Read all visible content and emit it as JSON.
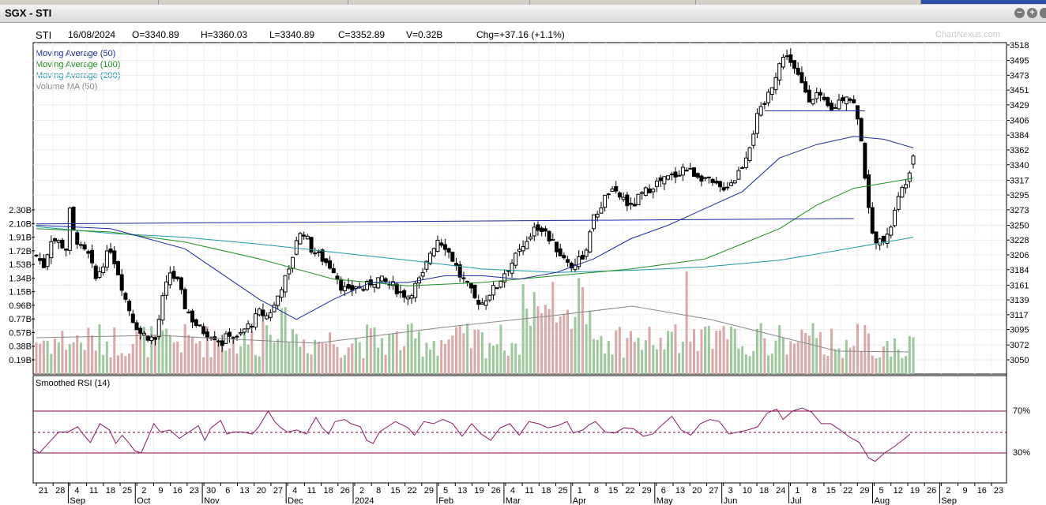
{
  "window": {
    "title": "SGX - STI"
  },
  "quote": {
    "symbol": "STI",
    "date": "16/08/2024",
    "open": "O=3340.89",
    "high": "H=3360.03",
    "low": "L=3340.89",
    "close": "C=3352.89",
    "volume": "V=0.32B",
    "change": "Chg=+37.16 (+1.1%)"
  },
  "watermark": "ChartNexus.com",
  "legend": [
    {
      "label": "Moving Average (50)",
      "color": "#1a2aa0"
    },
    {
      "label": "Moving Average (100)",
      "color": "#1f8f1f"
    },
    {
      "label": "Moving Average (200)",
      "color": "#1a9aa8"
    },
    {
      "label": "Volume MA (50)",
      "color": "#888888"
    }
  ],
  "rsi": {
    "label": "Smoothed RSI (14)",
    "upper_label": "70%",
    "lower_label": "30%",
    "upper": 70,
    "lower": 30
  },
  "chart_data": {
    "type": "candlestick",
    "price_ticks": [
      3518,
      3495,
      3473,
      3451,
      3429,
      3406,
      3384,
      3362,
      3340,
      3317,
      3295,
      3273,
      3250,
      3228,
      3206,
      3184,
      3161,
      3139,
      3117,
      3095,
      3072,
      3050
    ],
    "ylim": [
      3040,
      3528
    ],
    "volume_ticks": [
      "2.30B",
      "2.10B",
      "1.91B",
      "1.72B",
      "1.53B",
      "1.34B",
      "1.15B",
      "0.96B",
      "0.77B",
      "0.57B",
      "0.38B",
      "0.19B"
    ],
    "x_day_ticks": [
      "21",
      "28",
      "4",
      "11",
      "18",
      "25",
      "2",
      "9",
      "16",
      "23",
      "30",
      "6",
      "13",
      "20",
      "27",
      "4",
      "11",
      "18",
      "26",
      "2",
      "8",
      "15",
      "22",
      "29",
      "5",
      "13",
      "19",
      "26",
      "4",
      "11",
      "18",
      "25",
      "1",
      "8",
      "15",
      "22",
      "29",
      "6",
      "13",
      "20",
      "27",
      "3",
      "10",
      "18",
      "24",
      "1",
      "8",
      "15",
      "22",
      "29",
      "5",
      "12",
      "19",
      "26",
      "2",
      "9",
      "16",
      "23"
    ],
    "x_month_labels": [
      {
        "label": "Sep",
        "index": 2
      },
      {
        "label": "Oct",
        "index": 6
      },
      {
        "label": "Nov",
        "index": 10
      },
      {
        "label": "Dec",
        "index": 15
      },
      {
        "label": "2024",
        "index": 19
      },
      {
        "label": "Feb",
        "index": 24
      },
      {
        "label": "Mar",
        "index": 28
      },
      {
        "label": "Apr",
        "index": 32
      },
      {
        "label": "May",
        "index": 37
      },
      {
        "label": "Jun",
        "index": 41
      },
      {
        "label": "Jul",
        "index": 45
      },
      {
        "label": "Aug",
        "index": 50
      },
      {
        "label": "Sep",
        "index": 54
      }
    ],
    "close_path": [
      [
        0,
        3205
      ],
      [
        2,
        3190
      ],
      [
        4,
        3230
      ],
      [
        6,
        3225
      ],
      [
        8,
        3215
      ],
      [
        9,
        3270
      ],
      [
        10,
        3240
      ],
      [
        12,
        3215
      ],
      [
        14,
        3205
      ],
      [
        16,
        3170
      ],
      [
        18,
        3195
      ],
      [
        20,
        3215
      ],
      [
        22,
        3180
      ],
      [
        24,
        3140
      ],
      [
        26,
        3110
      ],
      [
        28,
        3090
      ],
      [
        30,
        3085
      ],
      [
        32,
        3080
      ],
      [
        34,
        3140
      ],
      [
        36,
        3180
      ],
      [
        38,
        3165
      ],
      [
        40,
        3130
      ],
      [
        42,
        3110
      ],
      [
        44,
        3095
      ],
      [
        46,
        3090
      ],
      [
        48,
        3085
      ],
      [
        50,
        3075
      ],
      [
        52,
        3090
      ],
      [
        54,
        3080
      ],
      [
        56,
        3095
      ],
      [
        58,
        3105
      ],
      [
        60,
        3120
      ],
      [
        62,
        3115
      ],
      [
        64,
        3130
      ],
      [
        66,
        3160
      ],
      [
        68,
        3180
      ],
      [
        70,
        3230
      ],
      [
        72,
        3240
      ],
      [
        74,
        3215
      ],
      [
        76,
        3205
      ],
      [
        78,
        3195
      ],
      [
        80,
        3185
      ],
      [
        82,
        3160
      ],
      [
        84,
        3150
      ],
      [
        86,
        3160
      ],
      [
        88,
        3155
      ],
      [
        90,
        3165
      ],
      [
        92,
        3170
      ],
      [
        94,
        3165
      ],
      [
        96,
        3160
      ],
      [
        98,
        3150
      ],
      [
        100,
        3145
      ],
      [
        102,
        3160
      ],
      [
        104,
        3175
      ],
      [
        106,
        3210
      ],
      [
        108,
        3230
      ],
      [
        110,
        3220
      ],
      [
        112,
        3200
      ],
      [
        114,
        3175
      ],
      [
        116,
        3160
      ],
      [
        118,
        3140
      ],
      [
        120,
        3135
      ],
      [
        122,
        3150
      ],
      [
        124,
        3160
      ],
      [
        126,
        3180
      ],
      [
        128,
        3195
      ],
      [
        130,
        3210
      ],
      [
        132,
        3220
      ],
      [
        134,
        3250
      ],
      [
        136,
        3245
      ],
      [
        138,
        3230
      ],
      [
        140,
        3215
      ],
      [
        142,
        3200
      ],
      [
        144,
        3190
      ],
      [
        146,
        3200
      ],
      [
        148,
        3210
      ],
      [
        150,
        3260
      ],
      [
        152,
        3280
      ],
      [
        154,
        3300
      ],
      [
        156,
        3295
      ],
      [
        158,
        3290
      ],
      [
        160,
        3275
      ],
      [
        162,
        3290
      ],
      [
        164,
        3300
      ],
      [
        166,
        3310
      ],
      [
        168,
        3315
      ],
      [
        170,
        3320
      ],
      [
        172,
        3325
      ],
      [
        174,
        3335
      ],
      [
        176,
        3330
      ],
      [
        178,
        3325
      ],
      [
        180,
        3320
      ],
      [
        182,
        3310
      ],
      [
        184,
        3305
      ],
      [
        186,
        3310
      ],
      [
        188,
        3320
      ],
      [
        190,
        3340
      ],
      [
        192,
        3370
      ],
      [
        194,
        3410
      ],
      [
        196,
        3430
      ],
      [
        198,
        3460
      ],
      [
        200,
        3490
      ],
      [
        202,
        3505
      ],
      [
        204,
        3480
      ],
      [
        206,
        3460
      ],
      [
        208,
        3440
      ],
      [
        210,
        3445
      ],
      [
        212,
        3430
      ],
      [
        214,
        3420
      ],
      [
        216,
        3435
      ],
      [
        218,
        3445
      ],
      [
        220,
        3430
      ],
      [
        222,
        3380
      ],
      [
        224,
        3270
      ],
      [
        226,
        3220
      ],
      [
        228,
        3230
      ],
      [
        230,
        3250
      ],
      [
        232,
        3290
      ],
      [
        234,
        3317
      ],
      [
        236,
        3352
      ]
    ],
    "ma50": [
      [
        0,
        3250
      ],
      [
        20,
        3245
      ],
      [
        40,
        3215
      ],
      [
        60,
        3140
      ],
      [
        70,
        3110
      ],
      [
        80,
        3140
      ],
      [
        90,
        3165
      ],
      [
        100,
        3165
      ],
      [
        110,
        3175
      ],
      [
        120,
        3175
      ],
      [
        130,
        3170
      ],
      [
        140,
        3180
      ],
      [
        150,
        3200
      ],
      [
        160,
        3230
      ],
      [
        170,
        3250
      ],
      [
        180,
        3275
      ],
      [
        190,
        3300
      ],
      [
        200,
        3350
      ],
      [
        210,
        3370
      ],
      [
        220,
        3382
      ],
      [
        228,
        3378
      ],
      [
        236,
        3365
      ]
    ],
    "ma100": [
      [
        0,
        3245
      ],
      [
        20,
        3240
      ],
      [
        40,
        3225
      ],
      [
        60,
        3200
      ],
      [
        80,
        3170
      ],
      [
        100,
        3160
      ],
      [
        120,
        3165
      ],
      [
        140,
        3175
      ],
      [
        160,
        3185
      ],
      [
        180,
        3200
      ],
      [
        200,
        3245
      ],
      [
        210,
        3280
      ],
      [
        220,
        3305
      ],
      [
        236,
        3320
      ]
    ],
    "ma200": [
      [
        0,
        3248
      ],
      [
        20,
        3238
      ],
      [
        40,
        3232
      ],
      [
        60,
        3222
      ],
      [
        80,
        3210
      ],
      [
        100,
        3198
      ],
      [
        120,
        3185
      ],
      [
        140,
        3180
      ],
      [
        160,
        3183
      ],
      [
        180,
        3188
      ],
      [
        200,
        3198
      ],
      [
        215,
        3212
      ],
      [
        236,
        3232
      ]
    ],
    "trendlines": [
      {
        "from": [
          0,
          3252
        ],
        "to": [
          220,
          3260
        ]
      },
      {
        "from": [
          196,
          3420
        ],
        "to": [
          223,
          3420
        ]
      }
    ],
    "rsi_path": [
      [
        0,
        34
      ],
      [
        4,
        30
      ],
      [
        10,
        40
      ],
      [
        16,
        50
      ],
      [
        22,
        50
      ],
      [
        28,
        55
      ],
      [
        32,
        47
      ],
      [
        36,
        40
      ],
      [
        42,
        58
      ],
      [
        48,
        52
      ],
      [
        52,
        39
      ],
      [
        56,
        47
      ],
      [
        60,
        40
      ],
      [
        64,
        32
      ],
      [
        68,
        30
      ],
      [
        72,
        44
      ],
      [
        76,
        58
      ],
      [
        80,
        50
      ],
      [
        86,
        52
      ],
      [
        92,
        44
      ],
      [
        98,
        50
      ],
      [
        104,
        56
      ],
      [
        108,
        42
      ],
      [
        112,
        54
      ],
      [
        118,
        61
      ],
      [
        122,
        48
      ],
      [
        126,
        50
      ],
      [
        132,
        50
      ],
      [
        138,
        48
      ],
      [
        142,
        55
      ],
      [
        148,
        70
      ],
      [
        152,
        60
      ],
      [
        156,
        54
      ],
      [
        160,
        50
      ],
      [
        166,
        52
      ],
      [
        172,
        48
      ],
      [
        178,
        64
      ],
      [
        182,
        54
      ],
      [
        186,
        48
      ],
      [
        190,
        60
      ],
      [
        196,
        62
      ],
      [
        200,
        58
      ],
      [
        206,
        55
      ],
      [
        210,
        42
      ],
      [
        214,
        39
      ],
      [
        218,
        50
      ],
      [
        224,
        56
      ],
      [
        228,
        60
      ],
      [
        236,
        54
      ],
      [
        240,
        47
      ],
      [
        246,
        60
      ],
      [
        252,
        58
      ],
      [
        258,
        62
      ],
      [
        264,
        58
      ],
      [
        270,
        46
      ],
      [
        276,
        58
      ],
      [
        282,
        48
      ],
      [
        288,
        42
      ],
      [
        294,
        54
      ],
      [
        300,
        58
      ],
      [
        306,
        47
      ],
      [
        312,
        60
      ],
      [
        318,
        58
      ],
      [
        324,
        54
      ],
      [
        330,
        56
      ],
      [
        336,
        60
      ],
      [
        340,
        49
      ],
      [
        346,
        52
      ],
      [
        350,
        57
      ],
      [
        354,
        60
      ],
      [
        360,
        50
      ],
      [
        366,
        49
      ],
      [
        372,
        54
      ],
      [
        378,
        53
      ],
      [
        384,
        46
      ],
      [
        390,
        48
      ],
      [
        396,
        57
      ],
      [
        402,
        65
      ],
      [
        408,
        52
      ],
      [
        414,
        47
      ],
      [
        420,
        58
      ],
      [
        426,
        62
      ],
      [
        432,
        60
      ],
      [
        438,
        48
      ],
      [
        444,
        50
      ],
      [
        450,
        52
      ],
      [
        456,
        55
      ],
      [
        462,
        68
      ],
      [
        468,
        72
      ],
      [
        472,
        62
      ],
      [
        478,
        70
      ],
      [
        484,
        73
      ],
      [
        490,
        69
      ],
      [
        496,
        58
      ],
      [
        502,
        58
      ],
      [
        508,
        52
      ],
      [
        514,
        45
      ],
      [
        520,
        40
      ],
      [
        526,
        25
      ],
      [
        530,
        22
      ],
      [
        536,
        30
      ],
      [
        542,
        36
      ],
      [
        548,
        43
      ],
      [
        552,
        48
      ]
    ],
    "rsi_ylim": [
      0,
      100
    ]
  }
}
